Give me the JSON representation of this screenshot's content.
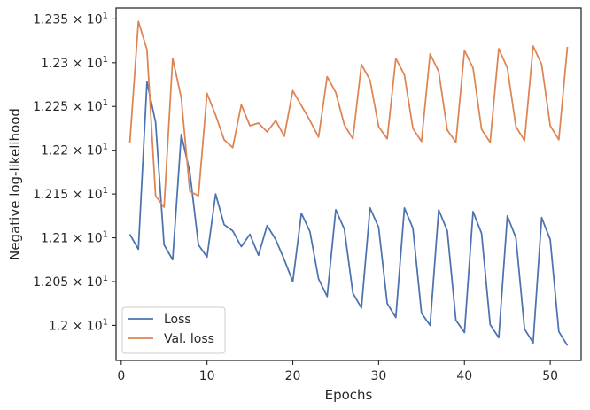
{
  "chart_data": {
    "type": "line",
    "xlabel": "Epochs",
    "ylabel": "Negative log-likelihood",
    "xlim": [
      -0.6,
      53.6
    ],
    "ylim": [
      11.96,
      12.3625
    ],
    "grid": false,
    "legend_placement": "lower-left",
    "x_ticks": [
      0,
      10,
      20,
      30,
      40,
      50
    ],
    "x_tick_labels": [
      "0",
      "10",
      "20",
      "30",
      "40",
      "50"
    ],
    "y_ticks": [
      12.0,
      12.05,
      12.1,
      12.15,
      12.2,
      12.25,
      12.3,
      12.35
    ],
    "y_tick_labels": [
      {
        "mantissa": "1.2",
        "base": "10",
        "exp": "1"
      },
      {
        "mantissa": "1.205",
        "base": "10",
        "exp": "1"
      },
      {
        "mantissa": "1.21",
        "base": "10",
        "exp": "1"
      },
      {
        "mantissa": "1.215",
        "base": "10",
        "exp": "1"
      },
      {
        "mantissa": "1.22",
        "base": "10",
        "exp": "1"
      },
      {
        "mantissa": "1.225",
        "base": "10",
        "exp": "1"
      },
      {
        "mantissa": "1.23",
        "base": "10",
        "exp": "1"
      },
      {
        "mantissa": "1.235",
        "base": "10",
        "exp": "1"
      }
    ],
    "x": [
      1,
      2,
      3,
      4,
      5,
      6,
      7,
      8,
      9,
      10,
      11,
      12,
      13,
      14,
      15,
      16,
      17,
      18,
      19,
      20,
      21,
      22,
      23,
      24,
      25,
      26,
      27,
      28,
      29,
      30,
      31,
      32,
      33,
      34,
      35,
      36,
      37,
      38,
      39,
      40,
      41,
      42,
      43,
      44,
      45,
      46,
      47,
      48,
      49,
      50,
      51,
      52
    ],
    "series": [
      {
        "name": "Loss",
        "color": "#4c72b0",
        "values": [
          12.104,
          12.087,
          12.278,
          12.232,
          12.092,
          12.075,
          12.218,
          12.175,
          12.092,
          12.078,
          12.15,
          12.115,
          12.108,
          12.09,
          12.104,
          12.08,
          12.114,
          12.098,
          12.075,
          12.05,
          12.128,
          12.107,
          12.053,
          12.033,
          12.132,
          12.11,
          12.037,
          12.02,
          12.134,
          12.112,
          12.025,
          12.009,
          12.134,
          12.111,
          12.014,
          12.0,
          12.132,
          12.108,
          12.006,
          11.992,
          12.13,
          12.105,
          12.001,
          11.986,
          12.125,
          12.1,
          11.996,
          11.98,
          12.123,
          12.098,
          11.993,
          11.977
        ]
      },
      {
        "name": "Val. loss",
        "color": "#dd8452",
        "values": [
          12.208,
          12.347,
          12.315,
          12.148,
          12.135,
          12.305,
          12.26,
          12.153,
          12.148,
          12.265,
          12.24,
          12.212,
          12.203,
          12.252,
          12.228,
          12.231,
          12.221,
          12.234,
          12.216,
          12.268,
          12.251,
          12.234,
          12.215,
          12.284,
          12.266,
          12.229,
          12.213,
          12.298,
          12.28,
          12.227,
          12.213,
          12.305,
          12.286,
          12.225,
          12.21,
          12.31,
          12.29,
          12.223,
          12.209,
          12.314,
          12.294,
          12.224,
          12.209,
          12.316,
          12.294,
          12.227,
          12.211,
          12.319,
          12.298,
          12.228,
          12.212,
          12.318
        ]
      }
    ]
  }
}
